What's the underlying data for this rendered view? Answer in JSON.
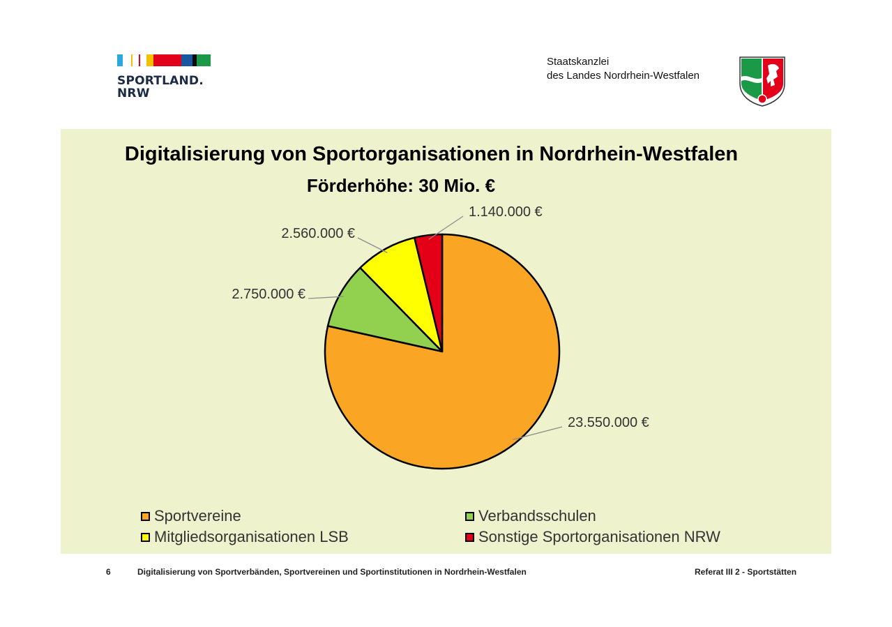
{
  "header": {
    "left_logo": {
      "text": "SPORTLAND.\nNRW",
      "stripe_colors": [
        "#2aa8e0",
        "#f3c000",
        "#e3001b",
        "#1a56a0",
        "#0b0b0b",
        "#1a9a46"
      ]
    },
    "right_org": {
      "line1": "Staatskanzlei",
      "line2": "des Landes Nordrhein-Westfalen"
    },
    "crest_icon": "nrw-coat-of-arms-icon"
  },
  "chart_data": {
    "type": "pie",
    "title": "Digitalisierung von Sportorganisationen in Nordrhein-Westfalen",
    "subtitle": "Förderhöhe: 30 Mio. €",
    "background": "#eff3cd",
    "legend_position": "bottom",
    "slices": [
      {
        "label": "Sportvereine",
        "value": 23550000,
        "value_label": "23.550.000 €",
        "color": "#faa523"
      },
      {
        "label": "Verbandsschulen",
        "value": 2750000,
        "value_label": "2.750.000 €",
        "color": "#92d050"
      },
      {
        "label": "Mitgliedsorganisationen LSB",
        "value": 2560000,
        "value_label": "2.560.000 €",
        "color": "#ffff00"
      },
      {
        "label": "Sonstige Sportorganisationen NRW",
        "value": 1140000,
        "value_label": "1.140.000 €",
        "color": "#e30016"
      }
    ]
  },
  "footer": {
    "page_number": "6",
    "title": "Digitalisierung von Sportverbänden, Sportvereinen und Sportinstitutionen in Nordrhein-Westfalen",
    "department": "Referat III 2 - Sportstätten"
  }
}
